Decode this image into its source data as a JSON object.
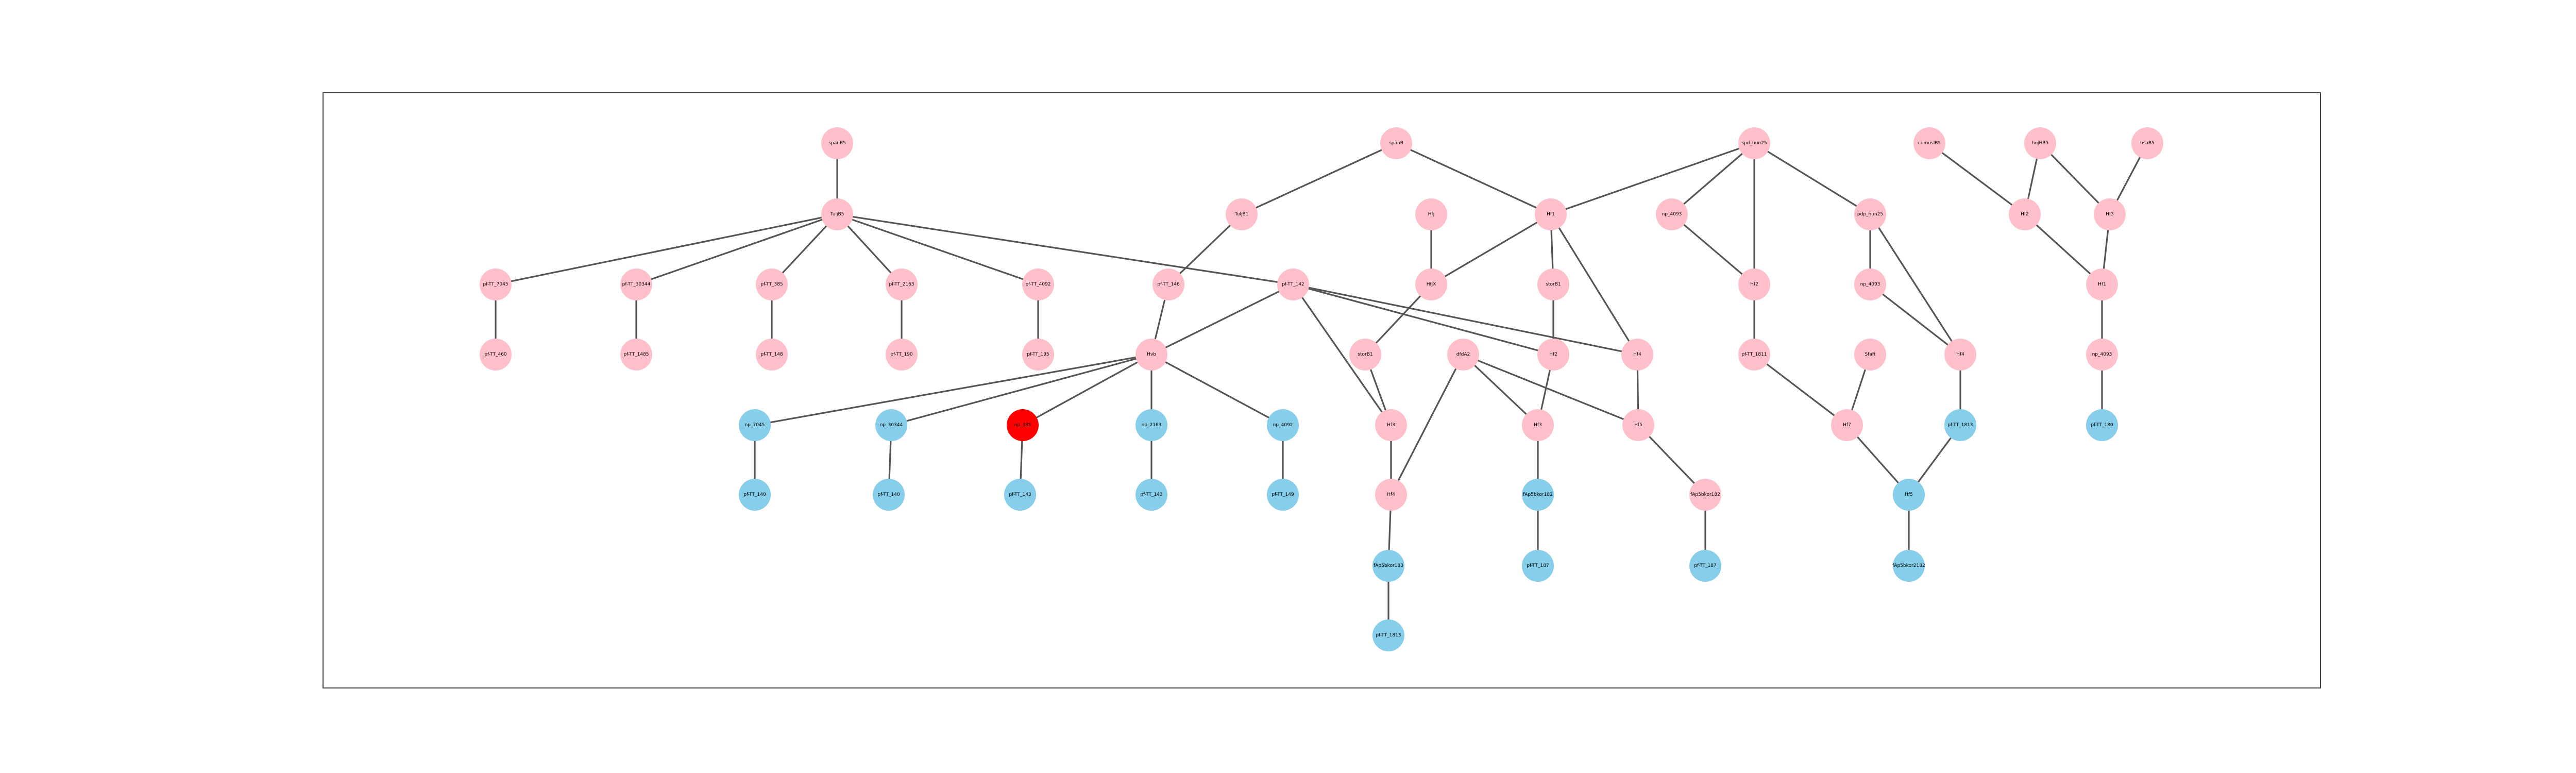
{
  "colors": {
    "pink": "#ffc0cb",
    "blue": "#87ceeb",
    "red": "#ff0000",
    "edge": "#555555",
    "frame": "#444444"
  },
  "nodes": [
    {
      "id": "n1",
      "label": "spanB5",
      "color": "pink"
    },
    {
      "id": "n2",
      "label": "TuljB5",
      "color": "pink"
    },
    {
      "id": "n3",
      "label": "pf-TT_7045",
      "color": "pink"
    },
    {
      "id": "n4",
      "label": "pf-TT_30344",
      "color": "pink"
    },
    {
      "id": "n5",
      "label": "pf-TT_385",
      "color": "pink"
    },
    {
      "id": "n6",
      "label": "pf-TT_2163",
      "color": "pink"
    },
    {
      "id": "n7",
      "label": "pf-TT_4092",
      "color": "pink"
    },
    {
      "id": "n8",
      "label": "pf-TT_460",
      "color": "pink"
    },
    {
      "id": "n9",
      "label": "pf-TT_1485",
      "color": "pink"
    },
    {
      "id": "n10",
      "label": "pf-TT_148",
      "color": "pink"
    },
    {
      "id": "n11",
      "label": "pf-TT_190",
      "color": "pink"
    },
    {
      "id": "n12",
      "label": "pf-TT_195",
      "color": "pink"
    },
    {
      "id": "n13",
      "label": "pf-TT_405",
      "color": "pink"
    },
    {
      "id": "n14",
      "label": "TuljB1",
      "color": "pink"
    },
    {
      "id": "n15",
      "label": "pf-TT_146",
      "color": "pink"
    },
    {
      "id": "n16",
      "label": "pf-TT_142",
      "color": "pink"
    },
    {
      "id": "n17",
      "label": "Hvb",
      "color": "pink"
    },
    {
      "id": "n18",
      "label": "np_7045",
      "color": "blue"
    },
    {
      "id": "n19",
      "label": "np_30344",
      "color": "blue"
    },
    {
      "id": "n20",
      "label": "np_385",
      "color": "red"
    },
    {
      "id": "n21",
      "label": "np_2163",
      "color": "blue"
    },
    {
      "id": "n22",
      "label": "np_4092",
      "color": "blue"
    },
    {
      "id": "n23",
      "label": "pf-TT_140",
      "color": "blue"
    },
    {
      "id": "n24",
      "label": "pf-TT_140",
      "color": "blue"
    },
    {
      "id": "n25",
      "label": "pf-TT_143",
      "color": "blue"
    },
    {
      "id": "n26",
      "label": "pf-TT_143",
      "color": "blue"
    },
    {
      "id": "n27",
      "label": "pf-TT_149",
      "color": "blue"
    },
    {
      "id": "n28",
      "label": "spanB",
      "color": "pink"
    },
    {
      "id": "n29",
      "label": "Hfj",
      "color": "pink"
    },
    {
      "id": "n30",
      "label": "HfjX",
      "color": "pink"
    },
    {
      "id": "n31",
      "label": "Hf1",
      "color": "pink"
    },
    {
      "id": "n32",
      "label": "storB1",
      "color": "pink"
    },
    {
      "id": "n33",
      "label": "storB1",
      "color": "pink"
    },
    {
      "id": "n34",
      "label": "dfdA2",
      "color": "pink"
    },
    {
      "id": "n35",
      "label": "Hf2",
      "color": "pink"
    },
    {
      "id": "n36",
      "label": "Hf3",
      "color": "pink"
    },
    {
      "id": "n37",
      "label": "Hf3",
      "color": "pink"
    },
    {
      "id": "n38",
      "label": "Hf4",
      "color": "pink"
    },
    {
      "id": "n39",
      "label": "Hf5",
      "color": "pink"
    },
    {
      "id": "n40",
      "label": "Hf4",
      "color": "pink"
    },
    {
      "id": "n41",
      "label": "fAp5bkor180",
      "color": "blue"
    },
    {
      "id": "n42",
      "label": "fAp5bkor182",
      "color": "blue"
    },
    {
      "id": "n43",
      "label": "fAp5bkor182",
      "color": "pink"
    },
    {
      "id": "n44",
      "label": "pf-TT_1813",
      "color": "blue"
    },
    {
      "id": "n45",
      "label": "pf-TT_187",
      "color": "blue"
    },
    {
      "id": "n46",
      "label": "pf-TT_187",
      "color": "blue"
    },
    {
      "id": "n47",
      "label": "spd_hun25",
      "color": "pink"
    },
    {
      "id": "n48",
      "label": "np_4093",
      "color": "pink"
    },
    {
      "id": "n49",
      "label": "Hf2",
      "color": "pink"
    },
    {
      "id": "n50",
      "label": "pdp_hun25",
      "color": "pink"
    },
    {
      "id": "n51",
      "label": "pf-TT_1811",
      "color": "pink"
    },
    {
      "id": "n52",
      "label": "np_4093",
      "color": "pink"
    },
    {
      "id": "n53",
      "label": "Sfaft",
      "color": "pink"
    },
    {
      "id": "n54",
      "label": "Hf4",
      "color": "pink"
    },
    {
      "id": "n55",
      "label": "Hf7",
      "color": "pink"
    },
    {
      "id": "n56",
      "label": "pf-TT_1813",
      "color": "blue"
    },
    {
      "id": "n57",
      "label": "Hf5",
      "color": "blue"
    },
    {
      "id": "n58",
      "label": "fAp5bkor2182",
      "color": "blue"
    },
    {
      "id": "n59",
      "label": "ci-muslB5",
      "color": "pink"
    },
    {
      "id": "n60",
      "label": "hojHB5",
      "color": "pink"
    },
    {
      "id": "n61",
      "label": "hsaB5",
      "color": "pink"
    },
    {
      "id": "n62",
      "label": "Hf2",
      "color": "pink"
    },
    {
      "id": "n63",
      "label": "Hf3",
      "color": "pink"
    },
    {
      "id": "n64",
      "label": "Hf1",
      "color": "pink"
    },
    {
      "id": "n65",
      "label": "np_4093",
      "color": "pink"
    },
    {
      "id": "n66",
      "label": "pf-TT_180",
      "color": "blue"
    }
  ],
  "edges": [
    [
      "n1",
      "n2"
    ],
    [
      "n2",
      "n3"
    ],
    [
      "n2",
      "n4"
    ],
    [
      "n2",
      "n5"
    ],
    [
      "n2",
      "n6"
    ],
    [
      "n2",
      "n7"
    ],
    [
      "n2",
      "n16"
    ],
    [
      "n3",
      "n8"
    ],
    [
      "n4",
      "n9"
    ],
    [
      "n5",
      "n10"
    ],
    [
      "n6",
      "n11"
    ],
    [
      "n7",
      "n12"
    ],
    [
      "n14",
      "n15"
    ],
    [
      "n15",
      "n17"
    ],
    [
      "n28",
      "n14"
    ],
    [
      "n28",
      "n31"
    ],
    [
      "n16",
      "n17"
    ],
    [
      "n16",
      "n35"
    ],
    [
      "n16",
      "n40"
    ],
    [
      "n16",
      "n37"
    ],
    [
      "n17",
      "n18"
    ],
    [
      "n17",
      "n19"
    ],
    [
      "n17",
      "n20"
    ],
    [
      "n17",
      "n21"
    ],
    [
      "n17",
      "n22"
    ],
    [
      "n18",
      "n23"
    ],
    [
      "n19",
      "n24"
    ],
    [
      "n20",
      "n25"
    ],
    [
      "n21",
      "n26"
    ],
    [
      "n22",
      "n27"
    ],
    [
      "n29",
      "n30"
    ],
    [
      "n30",
      "n32"
    ],
    [
      "n31",
      "n30"
    ],
    [
      "n31",
      "n33"
    ],
    [
      "n31",
      "n40"
    ],
    [
      "n33",
      "n35"
    ],
    [
      "n32",
      "n37"
    ],
    [
      "n37",
      "n38"
    ],
    [
      "n34",
      "n38"
    ],
    [
      "n34",
      "n36"
    ],
    [
      "n34",
      "n39"
    ],
    [
      "n35",
      "n36"
    ],
    [
      "n40",
      "n39"
    ],
    [
      "n38",
      "n41"
    ],
    [
      "n41",
      "n44"
    ],
    [
      "n36",
      "n42"
    ],
    [
      "n42",
      "n45"
    ],
    [
      "n39",
      "n43"
    ],
    [
      "n43",
      "n46"
    ],
    [
      "n47",
      "n31"
    ],
    [
      "n47",
      "n48"
    ],
    [
      "n47",
      "n49"
    ],
    [
      "n47",
      "n50"
    ],
    [
      "n48",
      "n49"
    ],
    [
      "n49",
      "n51"
    ],
    [
      "n51",
      "n55"
    ],
    [
      "n50",
      "n52"
    ],
    [
      "n50",
      "n54"
    ],
    [
      "n52",
      "n54"
    ],
    [
      "n53",
      "n55"
    ],
    [
      "n54",
      "n56"
    ],
    [
      "n55",
      "n57"
    ],
    [
      "n56",
      "n57"
    ],
    [
      "n57",
      "n58"
    ],
    [
      "n59",
      "n62"
    ],
    [
      "n60",
      "n62"
    ],
    [
      "n60",
      "n63"
    ],
    [
      "n61",
      "n63"
    ],
    [
      "n62",
      "n64"
    ],
    [
      "n63",
      "n64"
    ],
    [
      "n64",
      "n65"
    ],
    [
      "n65",
      "n66"
    ]
  ]
}
